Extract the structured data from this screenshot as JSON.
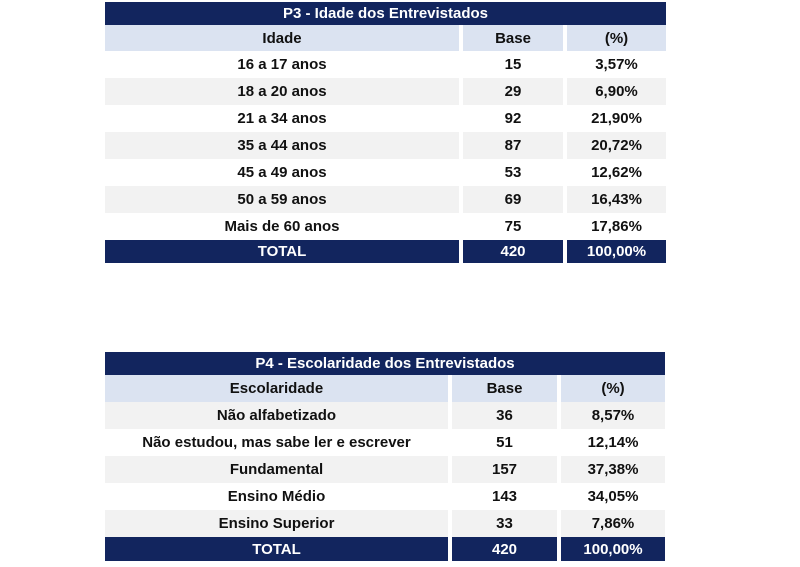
{
  "table_age": {
    "title": "P3 - Idade dos Entrevistados",
    "headers": [
      "Idade",
      "Base",
      "(%)"
    ],
    "rows": [
      [
        "16 a 17 anos",
        "15",
        "3,57%"
      ],
      [
        "18 a 20 anos",
        "29",
        "6,90%"
      ],
      [
        "21 a 34 anos",
        "92",
        "21,90%"
      ],
      [
        "35 a 44 anos",
        "87",
        "20,72%"
      ],
      [
        "45 a 49 anos",
        "53",
        "12,62%"
      ],
      [
        "50 a 59 anos",
        "69",
        "16,43%"
      ],
      [
        "Mais de 60 anos",
        "75",
        "17,86%"
      ]
    ],
    "total": [
      "TOTAL",
      "420",
      "100,00%"
    ]
  },
  "table_education": {
    "title": "P4 - Escolaridade dos Entrevistados",
    "headers": [
      "Escolaridade",
      "Base",
      "(%)"
    ],
    "rows": [
      [
        "Não alfabetizado",
        "36",
        "8,57%"
      ],
      [
        "Não estudou, mas sabe ler e escrever",
        "51",
        "12,14%"
      ],
      [
        "Fundamental",
        "157",
        "37,38%"
      ],
      [
        "Ensino Médio",
        "143",
        "34,05%"
      ],
      [
        "Ensino Superior",
        "33",
        "7,86%"
      ]
    ],
    "total": [
      "TOTAL",
      "420",
      "100,00%"
    ]
  },
  "colors": {
    "navy": "#12255e",
    "header_fill": "#dbe3f1",
    "alt_row_fill": "#f2f2f2"
  }
}
